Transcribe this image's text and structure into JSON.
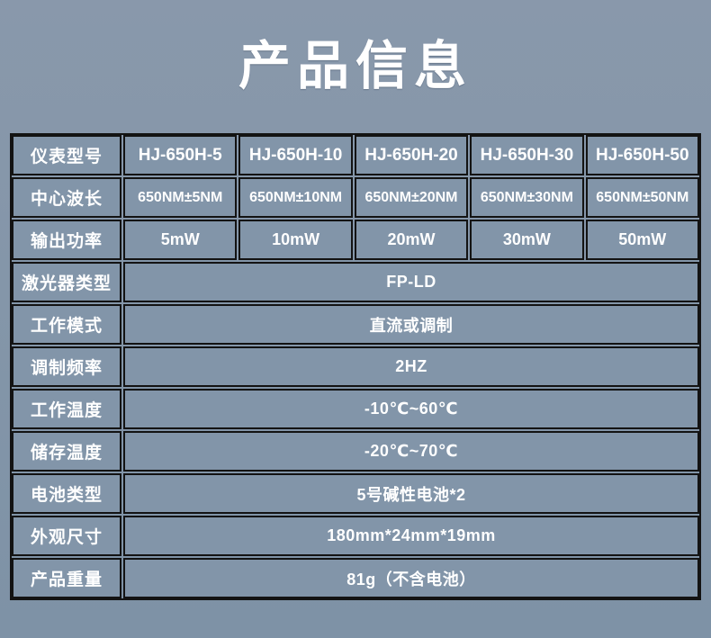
{
  "title": "产品信息",
  "colors": {
    "background": "#8496a9",
    "cell_background": "#8295a9",
    "table_border": "#131313",
    "text": "#ffffff"
  },
  "table": {
    "matrix_rows": [
      {
        "label": "仪表型号",
        "values": [
          "HJ-650H-5",
          "HJ-650H-10",
          "HJ-650H-20",
          "HJ-650H-30",
          "HJ-650H-50"
        ]
      },
      {
        "label": "中心波长",
        "values": [
          "650NM±5NM",
          "650NM±10NM",
          "650NM±20NM",
          "650NM±30NM",
          "650NM±50NM"
        ]
      },
      {
        "label": "输出功率",
        "values": [
          "5mW",
          "10mW",
          "20mW",
          "30mW",
          "50mW"
        ]
      }
    ],
    "span_rows": [
      {
        "label": "激光器类型",
        "value": "FP-LD"
      },
      {
        "label": "工作模式",
        "value": "直流或调制"
      },
      {
        "label": "调制频率",
        "value": "2HZ"
      },
      {
        "label": "工作温度",
        "value": "-10℃~60℃"
      },
      {
        "label": "储存温度",
        "value": "-20℃~70℃"
      },
      {
        "label": "电池类型",
        "value": "5号碱性电池*2"
      },
      {
        "label": "外观尺寸",
        "value": "180mm*24mm*19mm"
      },
      {
        "label": "产品重量",
        "value": "81g（不含电池）"
      }
    ]
  }
}
